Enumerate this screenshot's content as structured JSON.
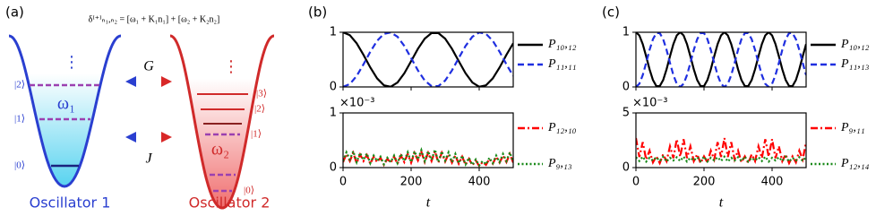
{
  "panel_labels": [
    "(a)",
    "(b)",
    "(c)"
  ],
  "diagram": {
    "formula": "δ⁽⁺⁾ₙ₁,ₙ₂ = [ω₁ + K₁n₁] + [ω₂ + K₂n₂]",
    "left": {
      "levels": [
        "|0⟩",
        "|1⟩",
        "|2⟩"
      ],
      "frequency": "ω₁",
      "name": "Oscillator 1"
    },
    "right": {
      "levels": [
        "|0⟩",
        "|1⟩",
        "|2⟩",
        "|3⟩"
      ],
      "frequency": "ω₂",
      "name": "Oscillator 2"
    },
    "couplings": [
      "G",
      "J"
    ]
  },
  "chart_data": [
    {
      "type": "line",
      "x": [
        0,
        20,
        40,
        60,
        80,
        100,
        120,
        140,
        160,
        180,
        200,
        220,
        240,
        260,
        280,
        300,
        320,
        340,
        360,
        380,
        400,
        420,
        440,
        460,
        480,
        500
      ],
      "series": [
        {
          "name": "P₁₀,₁₂",
          "color": "#000000",
          "linestyle": "solid",
          "values": [
            1,
            0.947,
            0.799,
            0.587,
            0.357,
            0.157,
            0.03,
            0.003,
            0.082,
            0.25,
            0.471,
            0.698,
            0.883,
            0.986,
            0.986,
            0.883,
            0.698,
            0.471,
            0.25,
            0.082,
            0.003,
            0.03,
            0.157,
            0.357,
            0.587,
            0.799
          ]
        },
        {
          "name": "P₁₁,₁₁",
          "color": "#1f2fe0",
          "linestyle": "dashed",
          "values": [
            0,
            0.053,
            0.201,
            0.413,
            0.643,
            0.843,
            0.97,
            0.997,
            0.918,
            0.75,
            0.529,
            0.302,
            0.117,
            0.014,
            0.014,
            0.117,
            0.302,
            0.529,
            0.75,
            0.918,
            0.997,
            0.97,
            0.843,
            0.643,
            0.413,
            0.201
          ]
        }
      ],
      "xlim": [
        0,
        500
      ],
      "ylim": [
        0,
        1
      ],
      "xticks": [
        0,
        200,
        400
      ],
      "yticks": [
        0,
        1
      ],
      "show_xticklabels": false
    },
    {
      "type": "line",
      "x": [
        0,
        10,
        20,
        30,
        40,
        50,
        60,
        70,
        80,
        90,
        100,
        110,
        120,
        130,
        140,
        150,
        160,
        170,
        180,
        190,
        200,
        210,
        220,
        230,
        240,
        250,
        260,
        270,
        280,
        290,
        300,
        310,
        320,
        330,
        340,
        350,
        360,
        370,
        380,
        390,
        400,
        410,
        420,
        430,
        440,
        450,
        460,
        470,
        480,
        490,
        500
      ],
      "series": [
        {
          "name": "P₁₂,₁₀",
          "color": "#ff0000",
          "linestyle": "dashdot",
          "values": [
            0.1,
            0.25,
            0.12,
            0.27,
            0.08,
            0.24,
            0.12,
            0.23,
            0.07,
            0.2,
            0.1,
            0.18,
            0.05,
            0.16,
            0.09,
            0.2,
            0.07,
            0.22,
            0.1,
            0.25,
            0.09,
            0.27,
            0.13,
            0.29,
            0.1,
            0.27,
            0.12,
            0.3,
            0.09,
            0.27,
            0.11,
            0.25,
            0.09,
            0.22,
            0.07,
            0.2,
            0.05,
            0.16,
            0.04,
            0.13,
            0.03,
            0.1,
            0.05,
            0.16,
            0.07,
            0.2,
            0.09,
            0.22,
            0.1,
            0.25,
            0.09
          ]
        },
        {
          "name": "P₉,₁₃",
          "color": "#1a8a1a",
          "linestyle": "dotted",
          "values": [
            0.12,
            0.28,
            0.15,
            0.3,
            0.1,
            0.27,
            0.14,
            0.26,
            0.08,
            0.22,
            0.12,
            0.2,
            0.06,
            0.18,
            0.1,
            0.22,
            0.08,
            0.25,
            0.12,
            0.28,
            0.1,
            0.3,
            0.15,
            0.32,
            0.12,
            0.3,
            0.14,
            0.33,
            0.1,
            0.3,
            0.13,
            0.28,
            0.1,
            0.25,
            0.08,
            0.22,
            0.06,
            0.18,
            0.05,
            0.15,
            0.04,
            0.12,
            0.06,
            0.18,
            0.08,
            0.22,
            0.1,
            0.25,
            0.12,
            0.28,
            0.1
          ]
        }
      ],
      "xlim": [
        0,
        500
      ],
      "ylim": [
        0,
        1
      ],
      "xticks": [
        0,
        200,
        400
      ],
      "yticks": [
        0,
        1
      ],
      "show_xticklabels": true,
      "y_offset_label": "×10⁻³",
      "xlabel": "t"
    },
    {
      "type": "line",
      "x": [
        0,
        10,
        20,
        30,
        40,
        50,
        60,
        70,
        80,
        90,
        100,
        110,
        120,
        130,
        140,
        150,
        160,
        170,
        180,
        190,
        200,
        210,
        220,
        230,
        240,
        250,
        260,
        270,
        280,
        290,
        300,
        310,
        320,
        330,
        340,
        350,
        360,
        370,
        380,
        390,
        400,
        410,
        420,
        430,
        440,
        450,
        460,
        470,
        480,
        490,
        500
      ],
      "series": [
        {
          "name": "P₁₀,₁₂",
          "color": "#000000",
          "linestyle": "solid",
          "values": [
            1,
            0.943,
            0.784,
            0.56,
            0.323,
            0.126,
            0.015,
            0.015,
            0.126,
            0.323,
            0.56,
            0.784,
            0.943,
            1,
            0.943,
            0.784,
            0.56,
            0.323,
            0.126,
            0.015,
            0.015,
            0.126,
            0.323,
            0.56,
            0.784,
            0.943,
            1,
            0.943,
            0.784,
            0.56,
            0.323,
            0.126,
            0.015,
            0.015,
            0.126,
            0.323,
            0.56,
            0.784,
            0.943,
            1,
            0.943,
            0.784,
            0.56,
            0.323,
            0.126,
            0.015,
            0.015,
            0.126,
            0.323,
            0.56,
            0.784
          ]
        },
        {
          "name": "P₁₁,₁₃",
          "color": "#1f2fe0",
          "linestyle": "dashed",
          "values": [
            0,
            0.057,
            0.216,
            0.44,
            0.677,
            0.874,
            0.985,
            0.985,
            0.874,
            0.677,
            0.44,
            0.216,
            0.057,
            0,
            0.057,
            0.216,
            0.44,
            0.677,
            0.874,
            0.985,
            0.985,
            0.874,
            0.677,
            0.44,
            0.216,
            0.057,
            0,
            0.057,
            0.216,
            0.44,
            0.677,
            0.874,
            0.985,
            0.985,
            0.874,
            0.677,
            0.44,
            0.216,
            0.057,
            0,
            0.057,
            0.216,
            0.44,
            0.677,
            0.874,
            0.985,
            0.985,
            0.874,
            0.677,
            0.44,
            0.216
          ]
        }
      ],
      "xlim": [
        0,
        500
      ],
      "ylim": [
        0,
        1
      ],
      "xticks": [
        0,
        200,
        400
      ],
      "yticks": [
        0,
        1
      ],
      "show_xticklabels": false
    },
    {
      "type": "line",
      "x": [
        0,
        10,
        20,
        30,
        40,
        50,
        60,
        70,
        80,
        90,
        100,
        110,
        120,
        130,
        140,
        150,
        160,
        170,
        180,
        190,
        200,
        210,
        220,
        230,
        240,
        250,
        260,
        270,
        280,
        290,
        300,
        310,
        320,
        330,
        340,
        350,
        360,
        370,
        380,
        390,
        400,
        410,
        420,
        430,
        440,
        450,
        460,
        470,
        480,
        490,
        500
      ],
      "series": [
        {
          "name": "P₉,₁₁",
          "color": "#ff0000",
          "linestyle": "dashdot",
          "values": [
            2.7,
            0.97,
            2.33,
            0.74,
            1.55,
            0.48,
            1.03,
            0.41,
            1.21,
            0.59,
            1.95,
            0.87,
            2.6,
            1.0,
            2.6,
            0.87,
            1.95,
            0.59,
            1.21,
            0.41,
            1.03,
            0.48,
            1.55,
            0.74,
            2.33,
            0.97,
            2.7,
            0.97,
            2.33,
            0.74,
            1.55,
            0.48,
            1.03,
            0.41,
            1.21,
            0.59,
            1.95,
            0.87,
            2.6,
            1.0,
            2.6,
            0.87,
            1.95,
            0.59,
            1.21,
            0.41,
            1.03,
            0.48,
            1.55,
            0.74,
            2.33
          ]
        },
        {
          "name": "P₁₂,₁₄",
          "color": "#1a8a1a",
          "linestyle": "dotted",
          "values": [
            0.95,
            0.6,
            1.0,
            0.55,
            0.9,
            0.65,
            0.95,
            0.6,
            1.0,
            0.55,
            0.9,
            0.65,
            0.95,
            0.6,
            1.0,
            0.55,
            0.9,
            0.65,
            0.95,
            0.6,
            1.0,
            0.55,
            0.9,
            0.65,
            0.95,
            0.6,
            1.0,
            0.55,
            0.9,
            0.65,
            0.95,
            0.6,
            1.0,
            0.55,
            0.9,
            0.65,
            0.95,
            0.6,
            1.0,
            0.55,
            0.9,
            0.65,
            0.95,
            0.6,
            1.0,
            0.55,
            0.9,
            0.65,
            0.95,
            0.6,
            1.0
          ]
        }
      ],
      "xlim": [
        0,
        500
      ],
      "ylim": [
        0,
        5
      ],
      "xticks": [
        0,
        200,
        400
      ],
      "yticks": [
        0,
        5
      ],
      "show_xticklabels": true,
      "y_offset_label": "×10⁻³",
      "xlabel": "t"
    }
  ]
}
